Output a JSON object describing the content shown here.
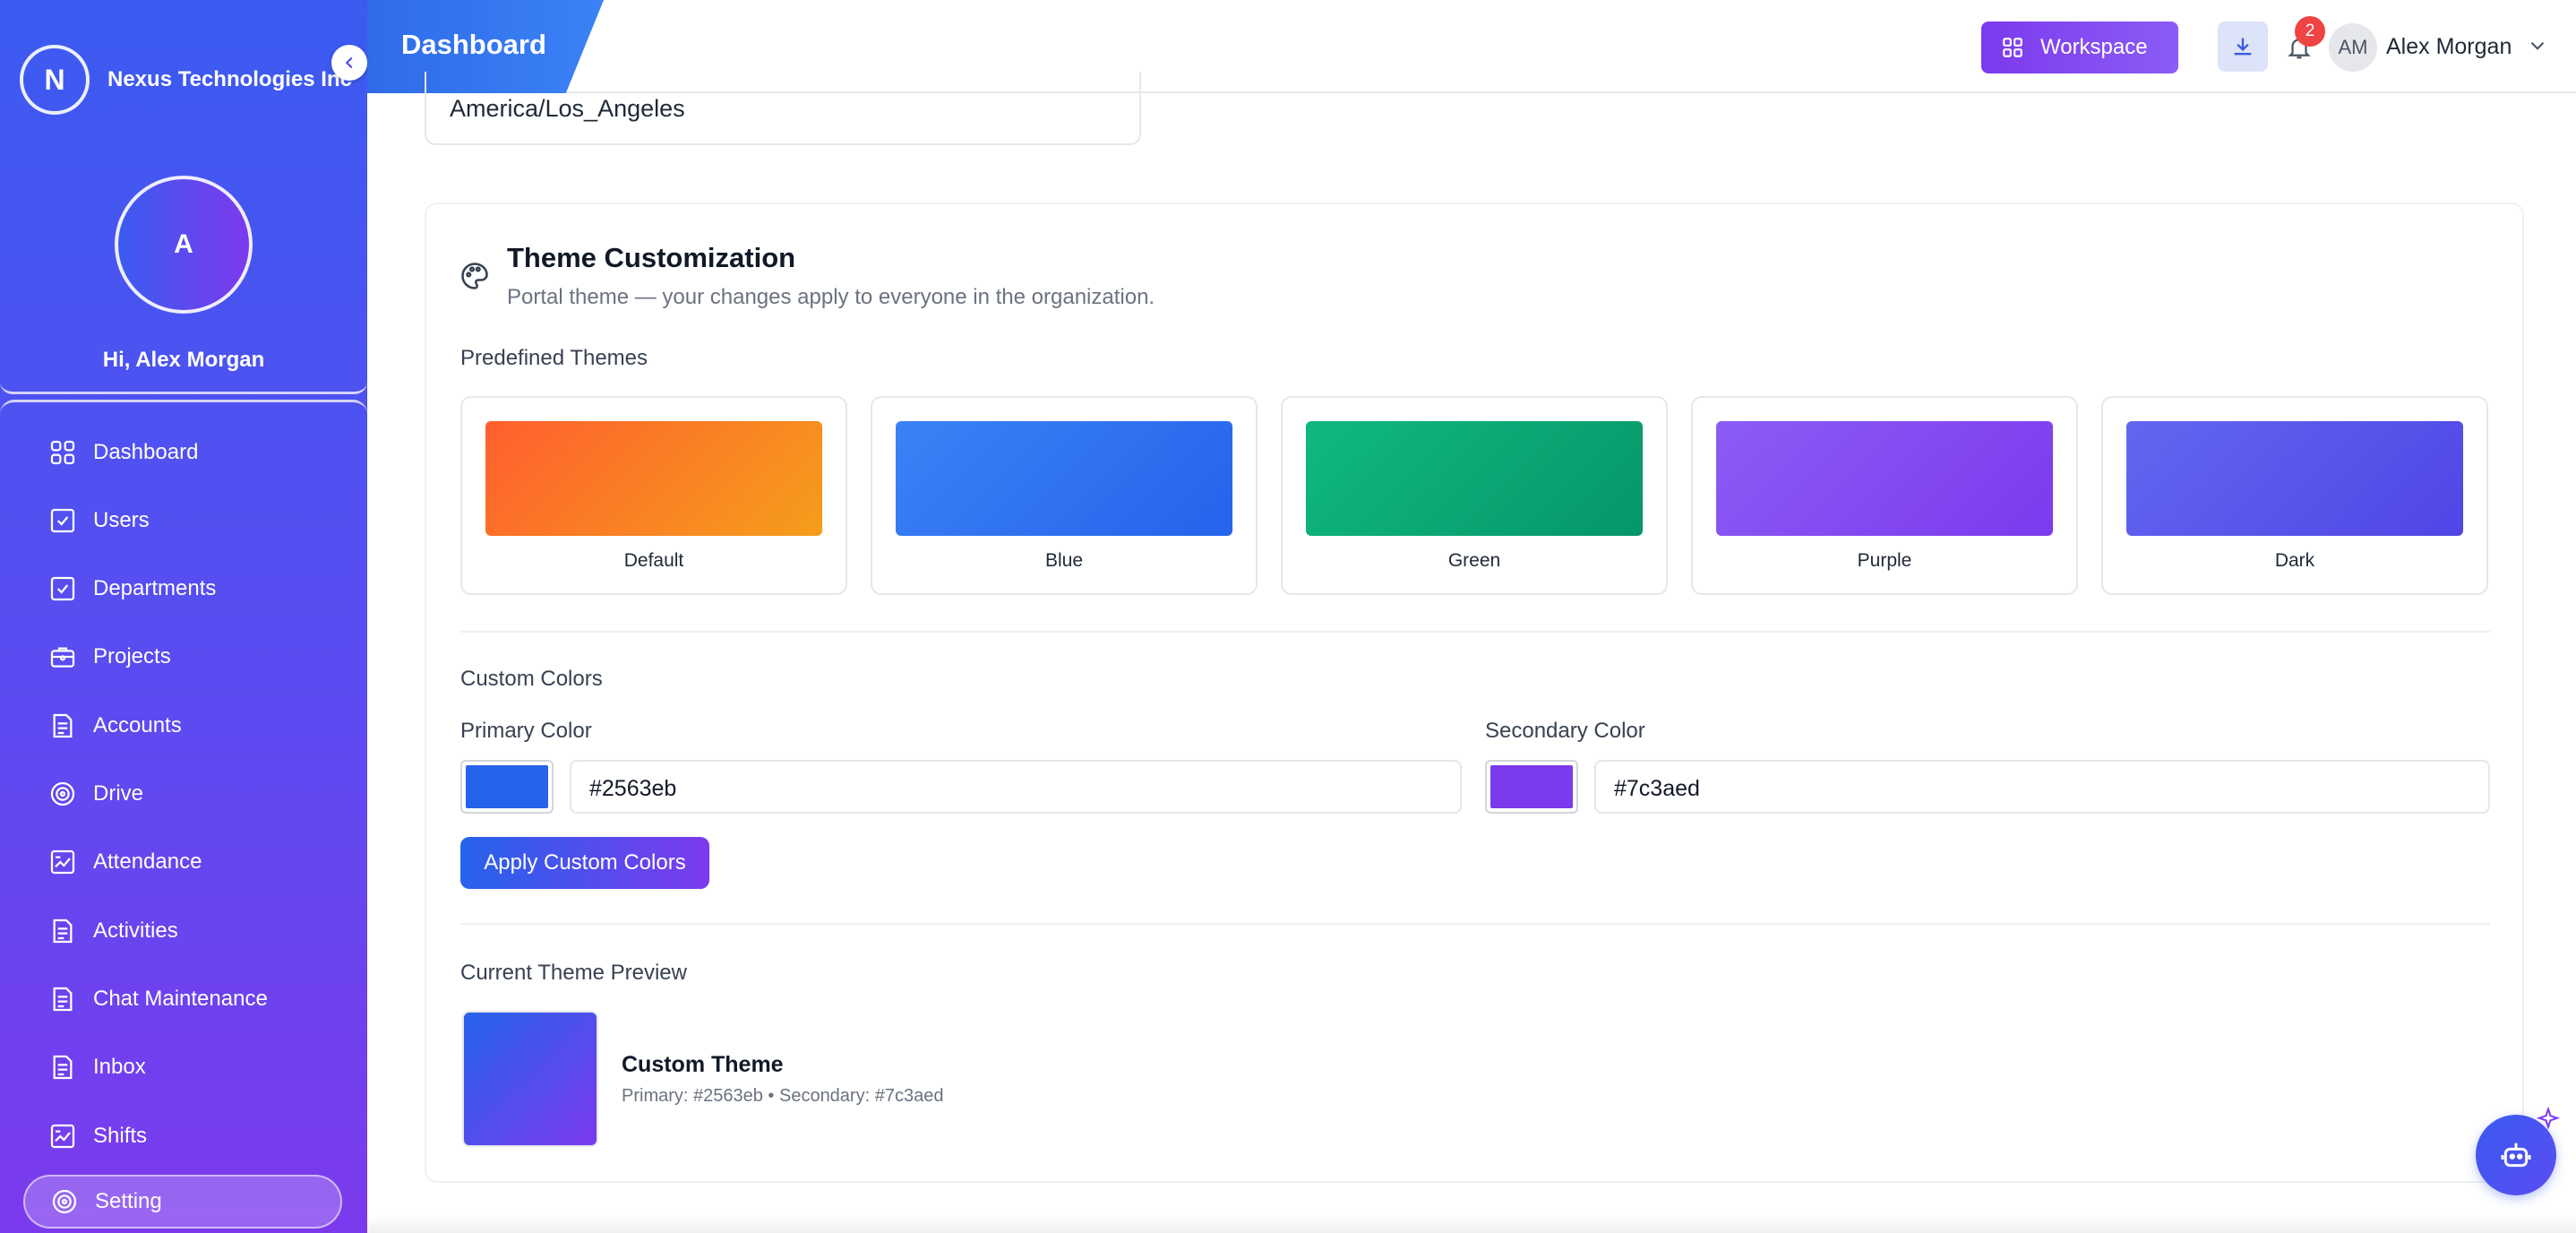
{
  "sidebar": {
    "company_initial": "N",
    "company_name": "Nexus Technologies Inc",
    "collapse_icon": "chevron-left-icon",
    "profile_initial": "A",
    "greeting": "Hi, Alex Morgan",
    "items": [
      {
        "label": "Dashboard",
        "icon": "grid-icon"
      },
      {
        "label": "Users",
        "icon": "checkbox-icon"
      },
      {
        "label": "Departments",
        "icon": "checkbox-icon"
      },
      {
        "label": "Projects",
        "icon": "briefcase-icon"
      },
      {
        "label": "Accounts",
        "icon": "document-icon"
      },
      {
        "label": "Drive",
        "icon": "disc-icon"
      },
      {
        "label": "Attendance",
        "icon": "chart-icon"
      },
      {
        "label": "Activities",
        "icon": "document-icon"
      },
      {
        "label": "Chat Maintenance",
        "icon": "document-icon"
      },
      {
        "label": "Inbox",
        "icon": "document-icon"
      },
      {
        "label": "Shifts",
        "icon": "chart-icon"
      },
      {
        "label": "Setting",
        "icon": "gear-icon",
        "active": true
      }
    ]
  },
  "header": {
    "title": "Dashboard",
    "workspace_label": "Workspace",
    "notification_count": "2",
    "user_initials": "AM",
    "user_name": "Alex Morgan"
  },
  "timezone": {
    "value": "America/Los_Angeles"
  },
  "theme": {
    "title": "Theme Customization",
    "subtitle": "Portal theme — your changes apply to everyone in the organization.",
    "predefined_label": "Predefined Themes",
    "presets": [
      {
        "name": "Default",
        "from": "#ff5f2e",
        "to": "#f59e1b"
      },
      {
        "name": "Blue",
        "from": "#3b82f6",
        "to": "#2563eb"
      },
      {
        "name": "Green",
        "from": "#10b981",
        "to": "#059669"
      },
      {
        "name": "Purple",
        "from": "#8b5cf6",
        "to": "#7c3aed"
      },
      {
        "name": "Dark",
        "from": "#6366f1",
        "to": "#4f46e5"
      }
    ],
    "custom_label": "Custom Colors",
    "primary_label": "Primary Color",
    "primary_value": "#2563eb",
    "secondary_label": "Secondary Color",
    "secondary_value": "#7c3aed",
    "apply_label": "Apply Custom Colors",
    "preview_label": "Current Theme Preview",
    "preview_name": "Custom Theme",
    "preview_detail": "Primary: #2563eb • Secondary: #7c3aed"
  }
}
